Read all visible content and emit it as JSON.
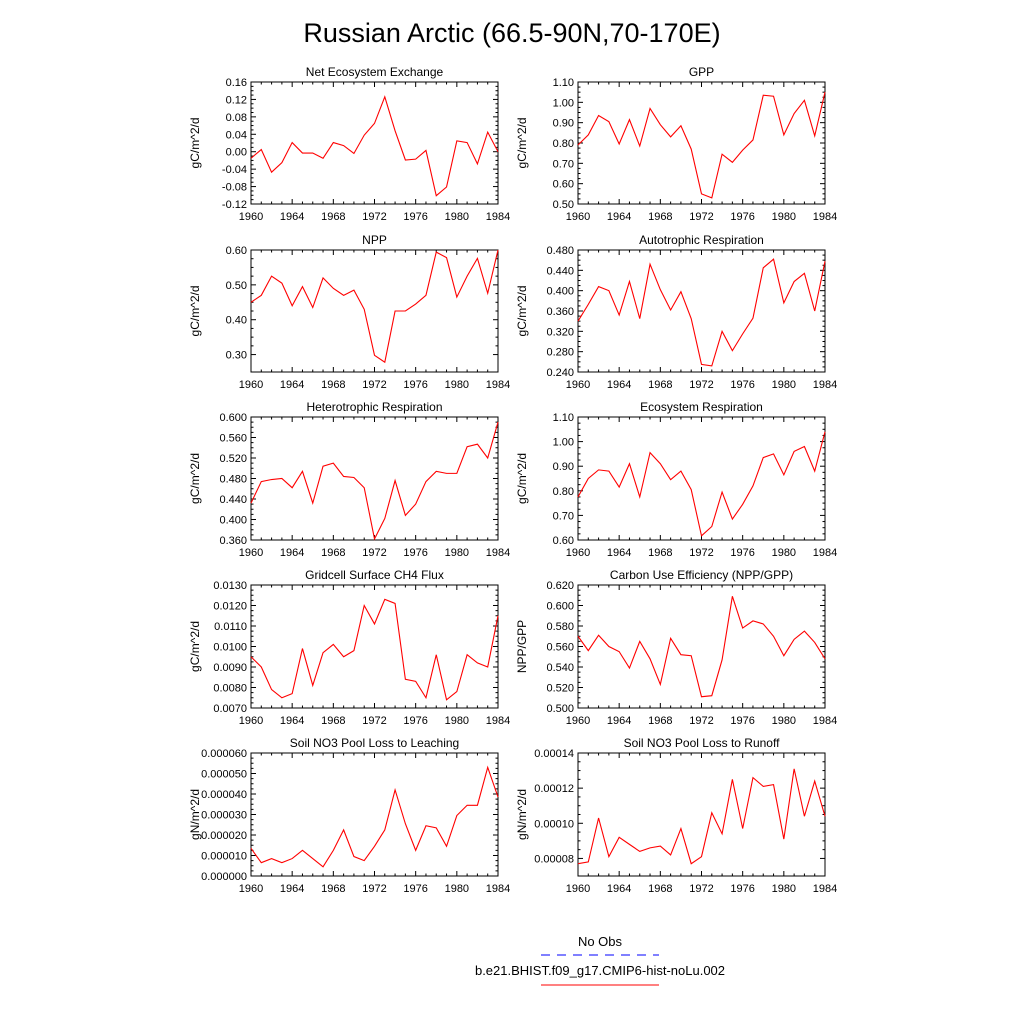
{
  "figure_title": "Russian Arctic (66.5-90N,70-170E)",
  "legend": {
    "entries": [
      {
        "label": "No Obs",
        "color": "#0000ff",
        "style": "dashed"
      },
      {
        "label": "b.e21.BHIST.f09_g17.CMIP6-hist-noLu.002",
        "color": "#ff0000",
        "style": "solid"
      }
    ]
  },
  "colors": {
    "series": "#ff0000",
    "obs": "#0000ff"
  },
  "chart_data": [
    {
      "type": "line",
      "title": "Net Ecosystem Exchange",
      "ylabel": "gC/m^2/d",
      "xlim": [
        1960,
        1984
      ],
      "ylim": [
        -0.12,
        0.16
      ],
      "xticks": [
        "1960",
        "1964",
        "1968",
        "1972",
        "1976",
        "1980",
        "1984"
      ],
      "yticks": [
        "-0.12",
        "-0.08",
        "-0.04",
        "0.00",
        "0.04",
        "0.08",
        "0.12",
        "0.16"
      ],
      "x": [
        1960,
        1961,
        1962,
        1963,
        1964,
        1965,
        1966,
        1967,
        1968,
        1969,
        1970,
        1971,
        1972,
        1973,
        1974,
        1975,
        1976,
        1977,
        1978,
        1979,
        1980,
        1981,
        1982,
        1983,
        1984
      ],
      "series": [
        {
          "name": "b.e21.BHIST.f09_g17.CMIP6-hist-noLu.002",
          "values": [
            -0.015,
            0.005,
            -0.047,
            -0.025,
            0.021,
            -0.003,
            -0.003,
            -0.015,
            0.021,
            0.014,
            -0.004,
            0.038,
            0.065,
            0.126,
            0.048,
            -0.019,
            -0.017,
            0.003,
            -0.101,
            -0.081,
            0.025,
            0.021,
            -0.028,
            0.045,
            0.0
          ]
        }
      ]
    },
    {
      "type": "line",
      "title": "GPP",
      "ylabel": "gC/m^2/d",
      "xlim": [
        1960,
        1984
      ],
      "ylim": [
        0.5,
        1.1
      ],
      "xticks": [
        "1960",
        "1964",
        "1968",
        "1972",
        "1976",
        "1980",
        "1984"
      ],
      "yticks": [
        "0.50",
        "0.60",
        "0.70",
        "0.80",
        "0.90",
        "1.00",
        "1.10"
      ],
      "x": [
        1960,
        1961,
        1962,
        1963,
        1964,
        1965,
        1966,
        1967,
        1968,
        1969,
        1970,
        1971,
        1972,
        1973,
        1974,
        1975,
        1976,
        1977,
        1978,
        1979,
        1980,
        1981,
        1982,
        1983,
        1984
      ],
      "series": [
        {
          "name": "b.e21.BHIST.f09_g17.CMIP6-hist-noLu.002",
          "values": [
            0.79,
            0.84,
            0.935,
            0.905,
            0.795,
            0.915,
            0.785,
            0.97,
            0.89,
            0.83,
            0.885,
            0.77,
            0.55,
            0.53,
            0.745,
            0.705,
            0.765,
            0.815,
            1.035,
            1.03,
            0.84,
            0.945,
            1.01,
            0.835,
            1.05
          ]
        }
      ]
    },
    {
      "type": "line",
      "title": "NPP",
      "ylabel": "gC/m^2/d",
      "xlim": [
        1960,
        1984
      ],
      "ylim": [
        0.25,
        0.6
      ],
      "xticks": [
        "1960",
        "1964",
        "1968",
        "1972",
        "1976",
        "1980",
        "1984"
      ],
      "yticks": [
        "0.30",
        "0.40",
        "0.50",
        "0.60"
      ],
      "x": [
        1960,
        1961,
        1962,
        1963,
        1964,
        1965,
        1966,
        1967,
        1968,
        1969,
        1970,
        1971,
        1972,
        1973,
        1974,
        1975,
        1976,
        1977,
        1978,
        1979,
        1980,
        1981,
        1982,
        1983,
        1984
      ],
      "series": [
        {
          "name": "b.e21.BHIST.f09_g17.CMIP6-hist-noLu.002",
          "values": [
            0.45,
            0.47,
            0.525,
            0.505,
            0.44,
            0.495,
            0.435,
            0.52,
            0.49,
            0.47,
            0.485,
            0.43,
            0.298,
            0.278,
            0.425,
            0.425,
            0.445,
            0.47,
            0.594,
            0.578,
            0.465,
            0.525,
            0.576,
            0.476,
            0.6
          ]
        }
      ]
    },
    {
      "type": "line",
      "title": "Autotrophic Respiration",
      "ylabel": "gC/m^2/d",
      "xlim": [
        1960,
        1984
      ],
      "ylim": [
        0.24,
        0.48
      ],
      "xticks": [
        "1960",
        "1964",
        "1968",
        "1972",
        "1976",
        "1980",
        "1984"
      ],
      "yticks": [
        "0.240",
        "0.280",
        "0.320",
        "0.360",
        "0.400",
        "0.440",
        "0.480"
      ],
      "x": [
        1960,
        1961,
        1962,
        1963,
        1964,
        1965,
        1966,
        1967,
        1968,
        1969,
        1970,
        1971,
        1972,
        1973,
        1974,
        1975,
        1976,
        1977,
        1978,
        1979,
        1980,
        1981,
        1982,
        1983,
        1984
      ],
      "series": [
        {
          "name": "b.e21.BHIST.f09_g17.CMIP6-hist-noLu.002",
          "values": [
            0.34,
            0.373,
            0.408,
            0.4,
            0.352,
            0.418,
            0.345,
            0.452,
            0.402,
            0.362,
            0.398,
            0.345,
            0.255,
            0.252,
            0.32,
            0.282,
            0.315,
            0.346,
            0.445,
            0.462,
            0.376,
            0.418,
            0.434,
            0.36,
            0.458
          ]
        }
      ]
    },
    {
      "type": "line",
      "title": "Heterotrophic Respiration",
      "ylabel": "gC/m^2/d",
      "xlim": [
        1960,
        1984
      ],
      "ylim": [
        0.36,
        0.6
      ],
      "xticks": [
        "1960",
        "1964",
        "1968",
        "1972",
        "1976",
        "1980",
        "1984"
      ],
      "yticks": [
        "0.360",
        "0.400",
        "0.440",
        "0.480",
        "0.520",
        "0.560",
        "0.600"
      ],
      "x": [
        1960,
        1961,
        1962,
        1963,
        1964,
        1965,
        1966,
        1967,
        1968,
        1969,
        1970,
        1971,
        1972,
        1973,
        1974,
        1975,
        1976,
        1977,
        1978,
        1979,
        1980,
        1981,
        1982,
        1983,
        1984
      ],
      "series": [
        {
          "name": "b.e21.BHIST.f09_g17.CMIP6-hist-noLu.002",
          "values": [
            0.432,
            0.474,
            0.478,
            0.48,
            0.462,
            0.494,
            0.432,
            0.504,
            0.51,
            0.484,
            0.482,
            0.462,
            0.362,
            0.402,
            0.476,
            0.408,
            0.43,
            0.474,
            0.494,
            0.49,
            0.49,
            0.542,
            0.547,
            0.52,
            0.59
          ]
        }
      ]
    },
    {
      "type": "line",
      "title": "Ecosystem Respiration",
      "ylabel": "gC/m^2/d",
      "xlim": [
        1960,
        1984
      ],
      "ylim": [
        0.6,
        1.1
      ],
      "xticks": [
        "1960",
        "1964",
        "1968",
        "1972",
        "1976",
        "1980",
        "1984"
      ],
      "yticks": [
        "0.60",
        "0.70",
        "0.80",
        "0.90",
        "1.00",
        "1.10"
      ],
      "x": [
        1960,
        1961,
        1962,
        1963,
        1964,
        1965,
        1966,
        1967,
        1968,
        1969,
        1970,
        1971,
        1972,
        1973,
        1974,
        1975,
        1976,
        1977,
        1978,
        1979,
        1980,
        1981,
        1982,
        1983,
        1984
      ],
      "series": [
        {
          "name": "b.e21.BHIST.f09_g17.CMIP6-hist-noLu.002",
          "values": [
            0.775,
            0.85,
            0.885,
            0.88,
            0.815,
            0.91,
            0.775,
            0.955,
            0.91,
            0.845,
            0.88,
            0.805,
            0.617,
            0.655,
            0.795,
            0.685,
            0.745,
            0.82,
            0.935,
            0.95,
            0.865,
            0.96,
            0.98,
            0.88,
            1.04
          ]
        }
      ]
    },
    {
      "type": "line",
      "title": "Gridcell Surface CH4 Flux",
      "ylabel": "gC/m^2/d",
      "xlim": [
        1960,
        1984
      ],
      "ylim": [
        0.007,
        0.013
      ],
      "xticks": [
        "1960",
        "1964",
        "1968",
        "1972",
        "1976",
        "1980",
        "1984"
      ],
      "yticks": [
        "0.0070",
        "0.0080",
        "0.0090",
        "0.0100",
        "0.0110",
        "0.0120",
        "0.0130"
      ],
      "x": [
        1960,
        1961,
        1962,
        1963,
        1964,
        1965,
        1966,
        1967,
        1968,
        1969,
        1970,
        1971,
        1972,
        1973,
        1974,
        1975,
        1976,
        1977,
        1978,
        1979,
        1980,
        1981,
        1982,
        1983,
        1984
      ],
      "series": [
        {
          "name": "b.e21.BHIST.f09_g17.CMIP6-hist-noLu.002",
          "values": [
            0.0095,
            0.009,
            0.0079,
            0.0075,
            0.0077,
            0.0099,
            0.0081,
            0.0097,
            0.0101,
            0.0095,
            0.0098,
            0.012,
            0.0111,
            0.0123,
            0.0121,
            0.0084,
            0.0083,
            0.0075,
            0.0096,
            0.0074,
            0.0078,
            0.0096,
            0.0092,
            0.009,
            0.0115
          ]
        }
      ]
    },
    {
      "type": "line",
      "title": "Carbon Use Efficiency (NPP/GPP)",
      "ylabel": "NPP/GPP",
      "xlim": [
        1960,
        1984
      ],
      "ylim": [
        0.5,
        0.62
      ],
      "xticks": [
        "1960",
        "1964",
        "1968",
        "1972",
        "1976",
        "1980",
        "1984"
      ],
      "yticks": [
        "0.500",
        "0.520",
        "0.540",
        "0.560",
        "0.580",
        "0.600",
        "0.620"
      ],
      "x": [
        1960,
        1961,
        1962,
        1963,
        1964,
        1965,
        1966,
        1967,
        1968,
        1969,
        1970,
        1971,
        1972,
        1973,
        1974,
        1975,
        1976,
        1977,
        1978,
        1979,
        1980,
        1981,
        1982,
        1983,
        1984
      ],
      "series": [
        {
          "name": "b.e21.BHIST.f09_g17.CMIP6-hist-noLu.002",
          "values": [
            0.57,
            0.556,
            0.571,
            0.56,
            0.555,
            0.539,
            0.565,
            0.548,
            0.523,
            0.568,
            0.552,
            0.551,
            0.511,
            0.512,
            0.547,
            0.609,
            0.578,
            0.585,
            0.582,
            0.57,
            0.551,
            0.567,
            0.575,
            0.564,
            0.548
          ]
        }
      ]
    },
    {
      "type": "line",
      "title": "Soil NO3 Pool Loss to Leaching",
      "ylabel": "gN/m^2/d",
      "xlim": [
        1960,
        1984
      ],
      "ylim": [
        0.0,
        6e-05
      ],
      "xticks": [
        "1960",
        "1964",
        "1968",
        "1972",
        "1976",
        "1980",
        "1984"
      ],
      "yticks": [
        "0.000000",
        "0.000010",
        "0.000020",
        "0.000030",
        "0.000040",
        "0.000050",
        "0.000060"
      ],
      "x": [
        1960,
        1961,
        1962,
        1963,
        1964,
        1965,
        1966,
        1967,
        1968,
        1969,
        1970,
        1971,
        1972,
        1973,
        1974,
        1975,
        1976,
        1977,
        1978,
        1979,
        1980,
        1981,
        1982,
        1983,
        1984
      ],
      "series": [
        {
          "name": "b.e21.BHIST.f09_g17.CMIP6-hist-noLu.002",
          "values": [
            1.35e-05,
            6.5e-06,
            8.5e-06,
            6.5e-06,
            8.5e-06,
            1.25e-05,
            8.5e-06,
            4.5e-06,
            1.25e-05,
            2.25e-05,
            9.5e-06,
            7.5e-06,
            1.45e-05,
            2.25e-05,
            4.2e-05,
            2.55e-05,
            1.25e-05,
            2.45e-05,
            2.35e-05,
            1.45e-05,
            2.95e-05,
            3.45e-05,
            3.45e-05,
            5.3e-05,
            3.85e-05
          ]
        }
      ]
    },
    {
      "type": "line",
      "title": "Soil NO3 Pool Loss to Runoff",
      "ylabel": "gN/m^2/d",
      "xlim": [
        1960,
        1984
      ],
      "ylim": [
        7e-05,
        0.00014
      ],
      "xticks": [
        "1960",
        "1964",
        "1968",
        "1972",
        "1976",
        "1980",
        "1984"
      ],
      "yticks": [
        "0.00008",
        "0.00010",
        "0.00012",
        "0.00014"
      ],
      "x": [
        1960,
        1961,
        1962,
        1963,
        1964,
        1965,
        1966,
        1967,
        1968,
        1969,
        1970,
        1971,
        1972,
        1973,
        1974,
        1975,
        1976,
        1977,
        1978,
        1979,
        1980,
        1981,
        1982,
        1983,
        1984
      ],
      "series": [
        {
          "name": "b.e21.BHIST.f09_g17.CMIP6-hist-noLu.002",
          "values": [
            7.7e-05,
            7.8e-05,
            0.000103,
            8.1e-05,
            9.2e-05,
            8.8e-05,
            8.4e-05,
            8.6e-05,
            8.7e-05,
            8.2e-05,
            9.7e-05,
            7.7e-05,
            8.1e-05,
            0.000106,
            9.4e-05,
            0.000125,
            9.7e-05,
            0.000126,
            0.000121,
            0.000122,
            9.1e-05,
            0.000131,
            0.000104,
            0.000124,
            0.000104
          ]
        }
      ]
    }
  ]
}
